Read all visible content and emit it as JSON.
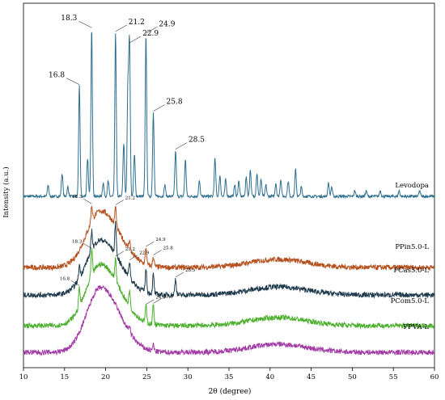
{
  "chart_data": {
    "type": "line",
    "xlabel": "2θ (degree)",
    "ylabel": "Intensity (a.u.)",
    "xlim": [
      10,
      60
    ],
    "xticks": [
      10,
      15,
      20,
      25,
      30,
      35,
      40,
      45,
      50,
      55,
      60
    ],
    "grid": false,
    "legend": "none",
    "series": [
      {
        "name": "Levodopa",
        "color": "#2e6f8e",
        "baseline": 0,
        "peaks": [
          {
            "x": 13.0,
            "h": 6
          },
          {
            "x": 14.7,
            "h": 12
          },
          {
            "x": 15.4,
            "h": 5
          },
          {
            "x": 16.8,
            "h": 58
          },
          {
            "x": 17.8,
            "h": 20
          },
          {
            "x": 18.3,
            "h": 88
          },
          {
            "x": 19.7,
            "h": 7
          },
          {
            "x": 20.3,
            "h": 8
          },
          {
            "x": 21.2,
            "h": 86
          },
          {
            "x": 22.2,
            "h": 28
          },
          {
            "x": 22.7,
            "h": 55
          },
          {
            "x": 22.9,
            "h": 80
          },
          {
            "x": 23.5,
            "h": 22
          },
          {
            "x": 24.9,
            "h": 85
          },
          {
            "x": 25.8,
            "h": 44
          },
          {
            "x": 27.2,
            "h": 6
          },
          {
            "x": 28.5,
            "h": 24
          },
          {
            "x": 29.7,
            "h": 19
          },
          {
            "x": 31.4,
            "h": 8
          },
          {
            "x": 33.3,
            "h": 20
          },
          {
            "x": 33.9,
            "h": 11
          },
          {
            "x": 34.6,
            "h": 9
          },
          {
            "x": 35.7,
            "h": 6
          },
          {
            "x": 36.2,
            "h": 8
          },
          {
            "x": 37.1,
            "h": 10
          },
          {
            "x": 37.6,
            "h": 14
          },
          {
            "x": 38.4,
            "h": 12
          },
          {
            "x": 38.9,
            "h": 9
          },
          {
            "x": 39.5,
            "h": 6
          },
          {
            "x": 40.7,
            "h": 7
          },
          {
            "x": 41.3,
            "h": 9
          },
          {
            "x": 42.2,
            "h": 8
          },
          {
            "x": 43.1,
            "h": 14
          },
          {
            "x": 43.8,
            "h": 5
          },
          {
            "x": 47.1,
            "h": 7
          },
          {
            "x": 47.5,
            "h": 5
          },
          {
            "x": 50.3,
            "h": 3
          },
          {
            "x": 51.7,
            "h": 3
          },
          {
            "x": 53.4,
            "h": 3
          },
          {
            "x": 55.7,
            "h": 3
          },
          {
            "x": 58.2,
            "h": 3
          }
        ],
        "annotations": [
          {
            "x": 16.8,
            "label": "16.8"
          },
          {
            "x": 18.3,
            "label": "18.3"
          },
          {
            "x": 21.2,
            "label": "21.2"
          },
          {
            "x": 22.9,
            "label": "22.9"
          },
          {
            "x": 24.9,
            "label": "24.9"
          },
          {
            "x": 25.8,
            "label": "25.8"
          },
          {
            "x": 28.5,
            "label": "28.5"
          }
        ]
      },
      {
        "name": "PPin5.0-L",
        "color": "#b5511f",
        "halo": {
          "center": 19.4,
          "height": 35
        },
        "peaks": [
          {
            "x": 18.3,
            "h": 10
          },
          {
            "x": 21.2,
            "h": 12
          },
          {
            "x": 22.9,
            "h": 6
          },
          {
            "x": 24.9,
            "h": 10
          },
          {
            "x": 25.8,
            "h": 6
          }
        ],
        "annotations": [
          {
            "x": 18.3,
            "label": "18.3"
          },
          {
            "x": 21.2,
            "label": "21.2"
          },
          {
            "x": 24.9,
            "label": "24.9"
          },
          {
            "x": 25.8,
            "label": "25.8"
          }
        ]
      },
      {
        "name": "PCas5.0-L",
        "color": "#1f3b4d",
        "halo": {
          "center": 19.4,
          "height": 34
        },
        "peaks": [
          {
            "x": 16.8,
            "h": 8
          },
          {
            "x": 18.3,
            "h": 12
          },
          {
            "x": 21.2,
            "h": 20
          },
          {
            "x": 22.9,
            "h": 10
          },
          {
            "x": 24.9,
            "h": 14
          },
          {
            "x": 25.8,
            "h": 12
          },
          {
            "x": 28.5,
            "h": 10
          }
        ],
        "annotations": [
          {
            "x": 22.9,
            "label": "22.9"
          },
          {
            "x": 28.5,
            "label": "28.5"
          }
        ]
      },
      {
        "name": "PCom5.0-L",
        "color": "#4caf2e",
        "halo": {
          "center": 19.4,
          "height": 38
        },
        "peaks": [
          {
            "x": 16.8,
            "h": 12
          },
          {
            "x": 18.3,
            "h": 16
          },
          {
            "x": 21.2,
            "h": 14
          },
          {
            "x": 22.9,
            "h": 10
          },
          {
            "x": 24.9,
            "h": 10
          },
          {
            "x": 25.8,
            "h": 12
          }
        ],
        "annotations": [
          {
            "x": 16.8,
            "label": "16.8"
          },
          {
            "x": 18.3,
            "label": "18.3"
          },
          {
            "x": 21.2,
            "label": "21.2"
          },
          {
            "x": 24.9,
            "label": "24.9"
          },
          {
            "x": 25.8,
            "label": "25.8"
          }
        ]
      },
      {
        "name": "PPVA-L",
        "color": "#a23aa6",
        "halo": {
          "center": 19.4,
          "height": 40
        },
        "peaks": [
          {
            "x": 22.9,
            "h": 4
          },
          {
            "x": 25.8,
            "h": 4
          }
        ],
        "annotations": []
      }
    ]
  }
}
